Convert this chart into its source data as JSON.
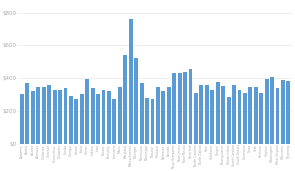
{
  "states": [
    "Alabama",
    "Alaska",
    "Arizona",
    "Arkansas",
    "California",
    "Colorado",
    "Connecticut",
    "Delaware",
    "Florida",
    "Georgia",
    "Hawaii",
    "Idaho",
    "Illinois",
    "Indiana",
    "Iowa",
    "Kansas",
    "Kentucky",
    "Louisiana",
    "Maine",
    "Maryland",
    "Massachusetts",
    "Michigan",
    "Minnesota",
    "Mississippi",
    "Missouri",
    "Montana",
    "Nebraska",
    "Nevada",
    "New Hampshire",
    "New Jersey",
    "New Mexico",
    "New York",
    "North Carolina",
    "North Dakota",
    "Ohio",
    "Oklahoma",
    "Oregon",
    "Pennsylvania",
    "Rhode Island",
    "South Carolina",
    "South Dakota",
    "Tennessee",
    "Texas",
    "Utah",
    "Vermont",
    "Virginia",
    "Washington",
    "West Virginia",
    "Wisconsin",
    "Wyoming"
  ],
  "values": [
    300,
    370,
    320,
    345,
    345,
    355,
    330,
    330,
    340,
    290,
    270,
    300,
    395,
    340,
    305,
    325,
    320,
    270,
    345,
    540,
    760,
    520,
    370,
    280,
    270,
    345,
    320,
    345,
    430,
    430,
    440,
    455,
    310,
    360,
    355,
    325,
    375,
    350,
    285,
    355,
    325,
    310,
    345,
    345,
    310,
    395,
    405,
    340,
    390,
    380
  ],
  "bar_color": "#5b9bd5",
  "bg_color": "#ffffff",
  "yticks": [
    0,
    200,
    400,
    600,
    800
  ],
  "ytick_labels": [
    "$0",
    "$200",
    "$400",
    "$600",
    "$800"
  ],
  "ylim": [
    0,
    860
  ],
  "grid_color": "#e8e8e8"
}
